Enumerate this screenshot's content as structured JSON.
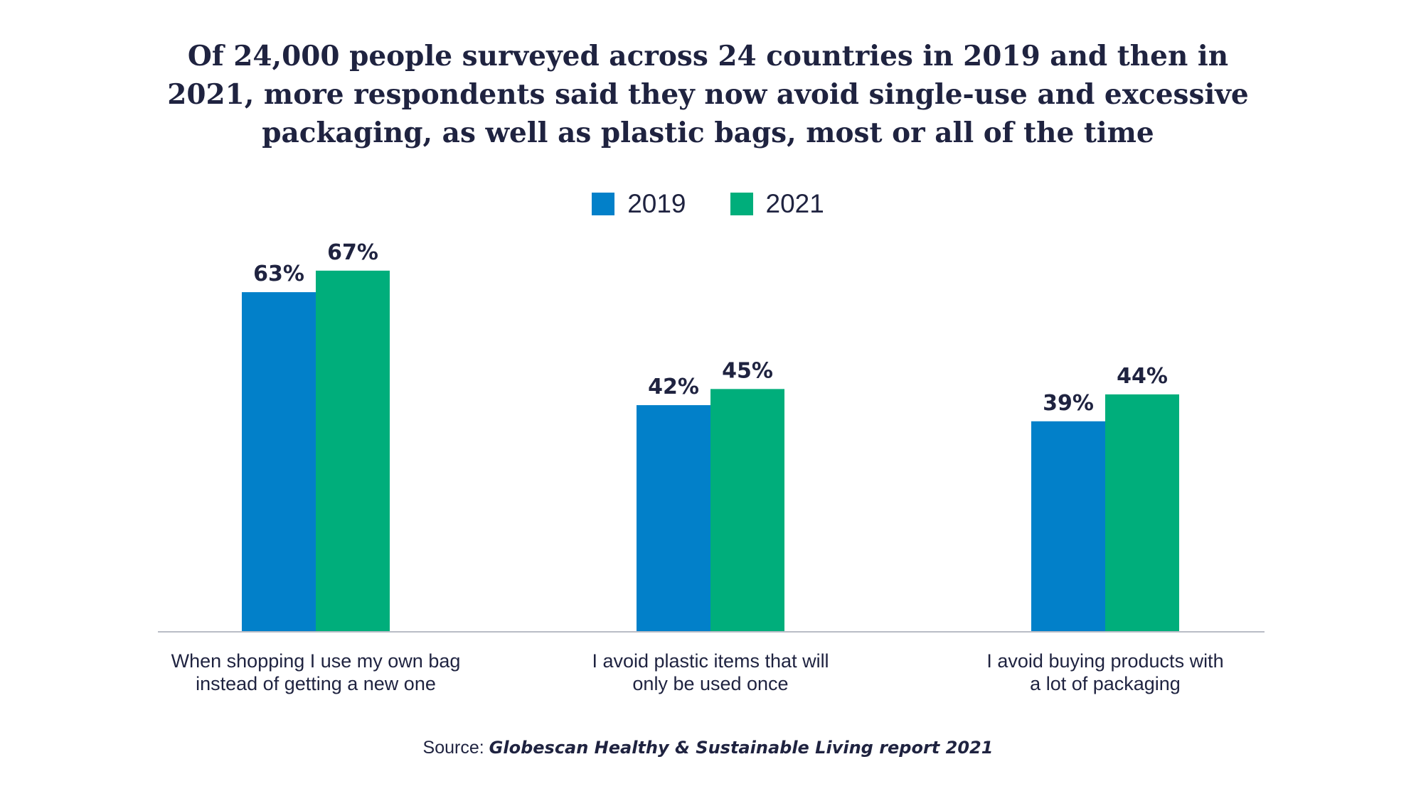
{
  "title_lines": [
    "Of 24,000 people surveyed across 24 countries in 2019 and then in",
    "2021, more respondents said they now avoid single-use and excessive",
    "packaging, as well as plastic bags, most or all of the time"
  ],
  "legend": [
    {
      "label": "2019",
      "color": "#0280c9"
    },
    {
      "label": "2021",
      "color": "#00ae7b"
    }
  ],
  "source": {
    "prefix": "Source: ",
    "reference": "Globescan Healthy & Sustainable Living report 2021"
  },
  "chart_data": {
    "type": "bar",
    "categories": [
      [
        "When shopping I use my own bag",
        "instead of getting a new one"
      ],
      [
        "I avoid plastic items that will",
        "only be used once"
      ],
      [
        "I avoid buying products with",
        "a lot of packaging"
      ]
    ],
    "series": [
      {
        "name": "2019",
        "color": "#0280c9",
        "values": [
          63,
          42,
          39
        ],
        "labels": [
          "63%",
          "42%",
          "39%"
        ]
      },
      {
        "name": "2021",
        "color": "#00ae7b",
        "values": [
          67,
          45,
          44
        ],
        "labels": [
          "67%",
          "45%",
          "44%"
        ]
      }
    ],
    "ylim": [
      0,
      100
    ],
    "grid": false,
    "legend_position": "top-center"
  }
}
